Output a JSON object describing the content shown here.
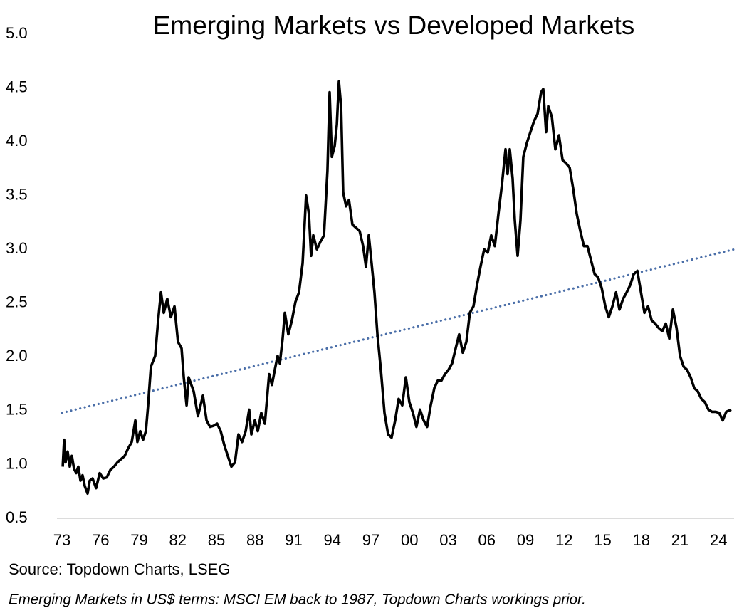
{
  "chart_data": {
    "type": "line",
    "title": "Emerging Markets vs Developed Markets",
    "source": "Source: Topdown Charts, LSEG",
    "note": "Emerging Markets in US$ terms: MSCI EM back to 1987, Topdown Charts workings prior.",
    "color": "#000000",
    "xlim": [
      1973,
      2025.2
    ],
    "ylim": [
      0.5,
      5
    ],
    "yticks": [
      0.5,
      {
        "value": 1,
        "label": "1.0"
      },
      1.5,
      {
        "value": 2,
        "label": "2.0"
      },
      2.5,
      {
        "value": 3,
        "label": "3.0"
      },
      3.5,
      {
        "value": 4,
        "label": "4.0"
      },
      4.5,
      {
        "value": 5,
        "label": "5.0"
      }
    ],
    "xticks": [
      {
        "value": 1973,
        "label": "73"
      },
      {
        "value": 1976,
        "label": "76"
      },
      {
        "value": 1979,
        "label": "79"
      },
      {
        "value": 1982,
        "label": "82"
      },
      {
        "value": 1985,
        "label": "85"
      },
      {
        "value": 1988,
        "label": "88"
      },
      {
        "value": 1991,
        "label": "91"
      },
      {
        "value": 1994,
        "label": "94"
      },
      {
        "value": 1997,
        "label": "97"
      },
      {
        "value": 2000,
        "label": "00"
      },
      {
        "value": 2003,
        "label": "03"
      },
      {
        "value": 2006,
        "label": "06"
      },
      {
        "value": 2009,
        "label": "09"
      },
      {
        "value": 2012,
        "label": "12"
      },
      {
        "value": 2015,
        "label": "15"
      },
      {
        "value": 2018,
        "label": "18"
      },
      {
        "value": 2021,
        "label": "21"
      },
      {
        "value": 2024,
        "label": "24"
      }
    ],
    "x": [
      1973.06,
      1973.17,
      1973.28,
      1973.44,
      1973.61,
      1973.77,
      1973.94,
      1974.11,
      1974.27,
      1974.44,
      1974.6,
      1974.77,
      1974.99,
      1975.16,
      1975.38,
      1975.65,
      1975.93,
      1976.21,
      1976.48,
      1976.76,
      1977.04,
      1977.31,
      1977.59,
      1977.87,
      1978.14,
      1978.42,
      1978.7,
      1978.86,
      1979.08,
      1979.3,
      1979.52,
      1979.69,
      1979.91,
      1980.24,
      1980.47,
      1980.69,
      1980.91,
      1981.18,
      1981.46,
      1981.74,
      1982.01,
      1982.29,
      1982.46,
      1982.68,
      1982.84,
      1983.23,
      1983.56,
      1983.95,
      1984.23,
      1984.5,
      1984.78,
      1985.05,
      1985.33,
      1985.61,
      1985.88,
      1986.16,
      1986.44,
      1986.71,
      1986.99,
      1987.27,
      1987.54,
      1987.71,
      1987.98,
      1988.21,
      1988.48,
      1988.76,
      1989.09,
      1989.31,
      1989.53,
      1989.75,
      1989.92,
      1990.14,
      1990.31,
      1990.58,
      1990.86,
      1991.13,
      1991.41,
      1991.69,
      1991.96,
      1992.18,
      1992.35,
      1992.52,
      1992.8,
      1993.07,
      1993.35,
      1993.62,
      1993.79,
      1993.96,
      1994.18,
      1994.35,
      1994.51,
      1994.68,
      1994.84,
      1995.07,
      1995.29,
      1995.56,
      1995.84,
      1996.12,
      1996.39,
      1996.61,
      1996.83,
      1997.05,
      1997.27,
      1997.5,
      1997.77,
      1998.05,
      1998.33,
      1998.6,
      1998.88,
      1999.15,
      1999.43,
      1999.71,
      1999.98,
      2000.26,
      2000.53,
      2000.81,
      2001.09,
      2001.36,
      2001.64,
      2001.92,
      2002.19,
      2002.47,
      2002.75,
      2003.02,
      2003.3,
      2003.58,
      2003.85,
      2004.13,
      2004.41,
      2004.68,
      2004.96,
      2005.24,
      2005.51,
      2005.79,
      2006.07,
      2006.34,
      2006.62,
      2006.9,
      2007.17,
      2007.45,
      2007.61,
      2007.78,
      2008.0,
      2008.17,
      2008.39,
      2008.61,
      2008.83,
      2009.11,
      2009.38,
      2009.66,
      2009.94,
      2010.21,
      2010.38,
      2010.6,
      2010.77,
      2011.05,
      2011.32,
      2011.6,
      2011.88,
      2012.15,
      2012.43,
      2012.71,
      2012.98,
      2013.26,
      2013.54,
      2013.81,
      2014.09,
      2014.37,
      2014.64,
      2014.92,
      2015.2,
      2015.47,
      2015.75,
      2016.03,
      2016.3,
      2016.58,
      2016.86,
      2017.14,
      2017.41,
      2017.69,
      2017.97,
      2018.24,
      2018.52,
      2018.8,
      2019.07,
      2019.34,
      2019.62,
      2019.9,
      2020.17,
      2020.45,
      2020.73,
      2021.0,
      2021.28,
      2021.55,
      2021.83,
      2022.11,
      2022.38,
      2022.66,
      2022.93,
      2023.21,
      2023.49,
      2023.76,
      2024.04,
      2024.32,
      2024.59,
      2024.98
    ],
    "values": [
      0.98,
      1.23,
      1.02,
      1.12,
      0.98,
      1.08,
      0.96,
      0.92,
      0.98,
      0.85,
      0.9,
      0.8,
      0.73,
      0.85,
      0.87,
      0.78,
      0.92,
      0.87,
      0.88,
      0.95,
      0.98,
      1.02,
      1.05,
      1.08,
      1.15,
      1.21,
      1.41,
      1.21,
      1.31,
      1.23,
      1.31,
      1.55,
      1.91,
      2.01,
      2.34,
      2.6,
      2.41,
      2.54,
      2.37,
      2.47,
      2.14,
      2.08,
      1.81,
      1.55,
      1.81,
      1.68,
      1.45,
      1.64,
      1.41,
      1.35,
      1.36,
      1.38,
      1.31,
      1.18,
      1.08,
      0.98,
      1.02,
      1.28,
      1.21,
      1.31,
      1.51,
      1.28,
      1.41,
      1.31,
      1.48,
      1.38,
      1.84,
      1.74,
      1.88,
      2.01,
      1.94,
      2.17,
      2.41,
      2.21,
      2.34,
      2.51,
      2.6,
      2.87,
      3.5,
      3.33,
      2.94,
      3.13,
      3.0,
      3.07,
      3.13,
      3.73,
      4.46,
      3.86,
      3.96,
      4.16,
      4.56,
      4.33,
      3.53,
      3.4,
      3.46,
      3.23,
      3.2,
      3.17,
      3.03,
      2.84,
      3.13,
      2.87,
      2.6,
      2.21,
      1.88,
      1.48,
      1.28,
      1.25,
      1.41,
      1.61,
      1.55,
      1.81,
      1.58,
      1.48,
      1.35,
      1.51,
      1.41,
      1.35,
      1.55,
      1.71,
      1.78,
      1.78,
      1.84,
      1.88,
      1.94,
      2.08,
      2.21,
      2.04,
      2.14,
      2.41,
      2.47,
      2.67,
      2.84,
      3.0,
      2.97,
      3.13,
      3.03,
      3.33,
      3.6,
      3.93,
      3.7,
      3.93,
      3.66,
      3.27,
      2.94,
      3.27,
      3.86,
      3.99,
      4.09,
      4.19,
      4.26,
      4.46,
      4.49,
      4.09,
      4.33,
      4.23,
      3.93,
      4.06,
      3.83,
      3.8,
      3.76,
      3.56,
      3.33,
      3.17,
      3.03,
      3.03,
      2.9,
      2.77,
      2.74,
      2.64,
      2.47,
      2.37,
      2.47,
      2.6,
      2.44,
      2.54,
      2.6,
      2.67,
      2.77,
      2.8,
      2.6,
      2.41,
      2.47,
      2.34,
      2.31,
      2.27,
      2.24,
      2.31,
      2.17,
      2.44,
      2.27,
      2.01,
      1.91,
      1.88,
      1.81,
      1.71,
      1.68,
      1.61,
      1.58,
      1.51,
      1.49,
      1.49,
      1.48,
      1.41,
      1.49,
      1.51
    ],
    "trend": {
      "x": [
        1973,
        2025.2
      ],
      "values": [
        1.48,
        3.0
      ],
      "color": "#4a6ea8"
    }
  }
}
